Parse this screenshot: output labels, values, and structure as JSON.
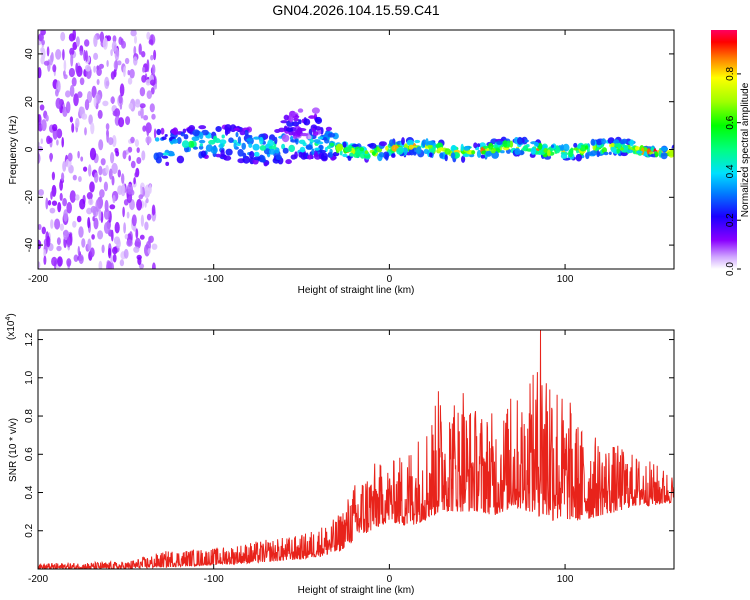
{
  "figure": {
    "title": "GN04.2026.104.15.59.C41"
  },
  "chart_data": [
    {
      "id": "spectrogram",
      "type": "heatmap",
      "xlabel": "Height of straight line (km)",
      "ylabel": "Frequency (Hz)",
      "xlim": [
        -200,
        162
      ],
      "ylim": [
        -50,
        50
      ],
      "xticks": [
        -200,
        -100,
        0,
        100
      ],
      "yticks": [
        -40,
        -20,
        0,
        20,
        40
      ],
      "colorbar": {
        "label": "Normalized spectral amplitude",
        "range": [
          0.0,
          0.98
        ],
        "ticks": [
          0.0,
          0.2,
          0.4,
          0.6,
          0.8
        ],
        "tick_labels": [
          "0.0",
          "0.2",
          "0.4",
          "0.6",
          "0.8"
        ],
        "colormap": [
          "#ffffff",
          "#8a00ff",
          "#0000ff",
          "#00c8ff",
          "#00ff80",
          "#00ff00",
          "#ffff00",
          "#ff8000",
          "#ff0000",
          "#ff0060"
        ]
      },
      "regions": [
        {
          "x_range": [
            -200,
            -133
          ],
          "freq_range": [
            -50,
            50
          ],
          "amplitude": 0.06,
          "description": "broadband noise"
        },
        {
          "x_range": [
            -133,
            -30
          ],
          "center_freq": 2,
          "freq_halfwidth": 7,
          "amplitude": 0.45
        },
        {
          "x_range": [
            -60,
            -40
          ],
          "center_freq": 10,
          "freq_halfwidth": 6,
          "amplitude": 0.2
        },
        {
          "x_range": [
            -30,
            140
          ],
          "center_freq": 0,
          "freq_halfwidth": 3,
          "amplitude": 0.7
        },
        {
          "x_range": [
            140,
            162
          ],
          "center_freq": 0,
          "freq_halfwidth": 1.5,
          "amplitude": 0.95
        }
      ],
      "grid": false
    },
    {
      "id": "snr",
      "type": "line",
      "xlabel": "Height of straight line (km)",
      "ylabel": "SNR (10 * v/v)",
      "ymultiplier": "(x10",
      "ymultiplier_exp": "4",
      "ymultiplier_close": ")",
      "xlim": [
        -200,
        162
      ],
      "ylim": [
        0,
        1.25
      ],
      "xticks": [
        -200,
        -100,
        0,
        100
      ],
      "yticks": [
        0.2,
        0.4,
        0.6,
        0.8,
        1.0,
        1.2
      ],
      "ytick_labels": [
        "0.2",
        "0.4",
        "0.6",
        "0.8",
        "1.0",
        "1.2"
      ],
      "color": "#e8231b",
      "envelope": {
        "x": [
          -200,
          -150,
          -125,
          -100,
          -80,
          -50,
          -30,
          -20,
          -10,
          0,
          10,
          20,
          30,
          40,
          50,
          60,
          70,
          80,
          90,
          100,
          110,
          120,
          130,
          140,
          150,
          162
        ],
        "y_min": [
          0.0,
          0.0,
          0.01,
          0.02,
          0.03,
          0.05,
          0.08,
          0.15,
          0.2,
          0.25,
          0.22,
          0.25,
          0.3,
          0.3,
          0.3,
          0.28,
          0.32,
          0.3,
          0.25,
          0.26,
          0.25,
          0.28,
          0.3,
          0.33,
          0.33,
          0.35
        ],
        "y_max": [
          0.03,
          0.04,
          0.1,
          0.11,
          0.14,
          0.18,
          0.27,
          0.45,
          0.56,
          0.55,
          0.64,
          0.76,
          0.93,
          0.92,
          0.85,
          0.82,
          0.88,
          0.97,
          1.25,
          0.87,
          0.75,
          0.68,
          0.65,
          0.6,
          0.56,
          0.5
        ]
      },
      "peaks": [
        {
          "x": 28,
          "y": 0.93
        },
        {
          "x": 42,
          "y": 0.92
        },
        {
          "x": 69,
          "y": 0.89
        },
        {
          "x": 80,
          "y": 0.97
        },
        {
          "x": 86,
          "y": 1.25
        },
        {
          "x": 103,
          "y": 0.87
        }
      ],
      "grid": false
    }
  ]
}
